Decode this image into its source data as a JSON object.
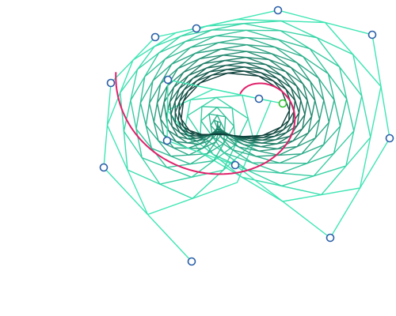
{
  "canvas": {
    "background": "#ffffff"
  },
  "control_polygon": {
    "point_count": 14,
    "closed": false,
    "stroke_color": "#3ee6b4",
    "vertex_fill": "#ffffff",
    "vertex_stroke": "#2a5fa8",
    "highlight_vertex_index": 13,
    "highlight_vertex_stroke": "#2ec42e"
  },
  "iterations": {
    "count": 20,
    "color_outer": "#3ee6b4",
    "color_inner": "#0f3f3a"
  },
  "limit_curve": {
    "color": "#e0206a"
  }
}
